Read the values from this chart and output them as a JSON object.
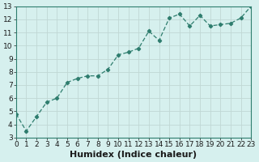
{
  "x": [
    0,
    1,
    2,
    3,
    4,
    5,
    6,
    7,
    8,
    9,
    10,
    11,
    12,
    13,
    14,
    15,
    16,
    17,
    18,
    19,
    20,
    21,
    22,
    23
  ],
  "y": [
    4.8,
    3.5,
    4.6,
    5.7,
    6.0,
    7.2,
    7.5,
    7.7,
    7.7,
    8.2,
    9.3,
    9.5,
    9.8,
    11.1,
    10.4,
    12.1,
    12.4,
    11.5,
    12.3,
    11.5,
    11.6,
    11.7,
    12.1,
    13.0
  ],
  "line_color": "#2e7d6e",
  "marker_color": "#2e7d6e",
  "bg_color": "#d6f0ee",
  "grid_color": "#c0d8d4",
  "axis_label_color": "#1a1a1a",
  "xlabel": "Humidex (Indice chaleur)",
  "xlim": [
    0,
    23
  ],
  "ylim": [
    3,
    13
  ],
  "yticks": [
    3,
    4,
    5,
    6,
    7,
    8,
    9,
    10,
    11,
    12,
    13
  ],
  "xticks": [
    0,
    1,
    2,
    3,
    4,
    5,
    6,
    7,
    8,
    9,
    10,
    11,
    12,
    13,
    14,
    15,
    16,
    17,
    18,
    19,
    20,
    21,
    22,
    23
  ],
  "tick_fontsize": 6.5,
  "label_fontsize": 8,
  "spine_color": "#2e7d6e"
}
